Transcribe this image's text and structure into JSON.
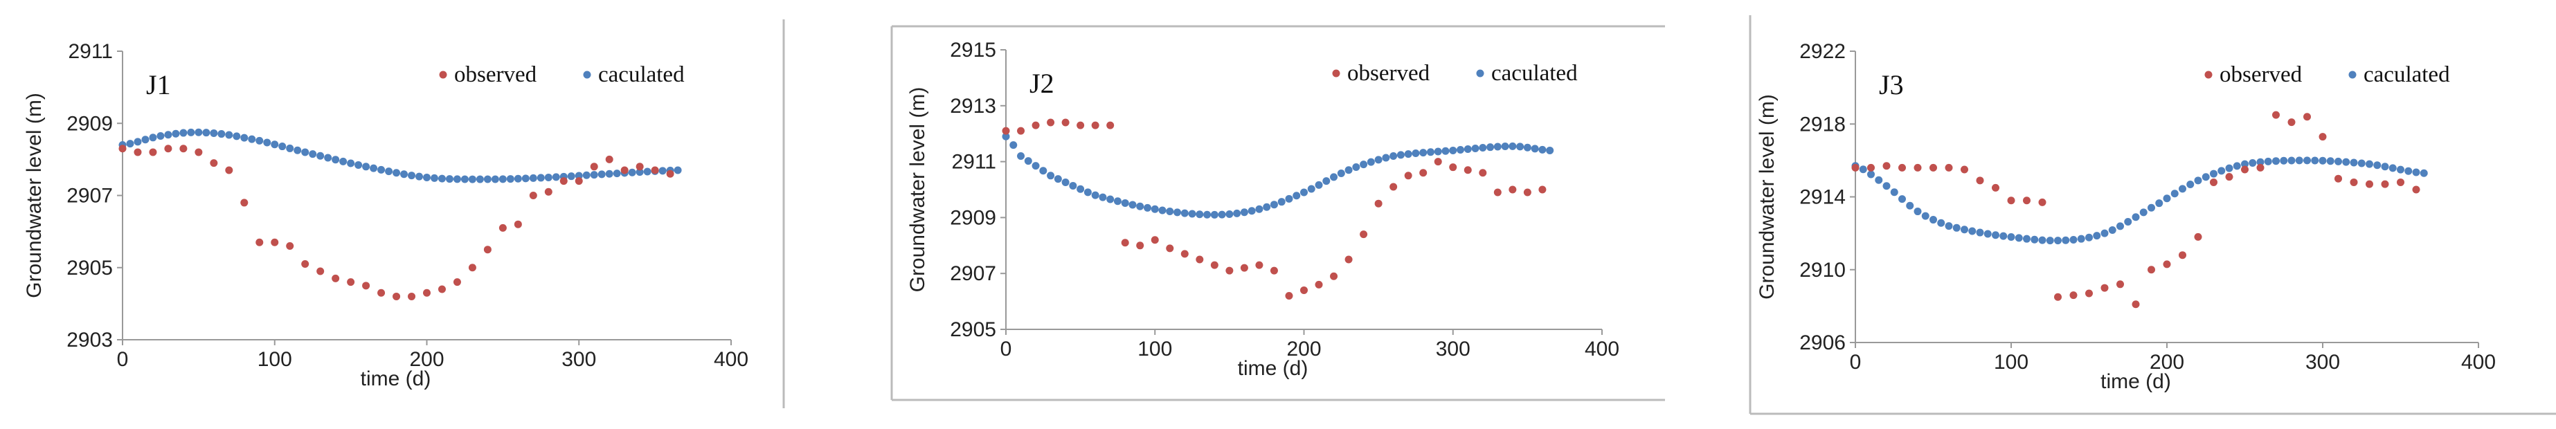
{
  "colors": {
    "observed": "#c0504d",
    "caculated": "#4f81bd",
    "axis": "#999999",
    "border": "#bbbbbb"
  },
  "chart_data": [
    {
      "type": "scatter",
      "title": "J1",
      "xlabel": "time (d)",
      "ylabel": "Groundwater level (m)",
      "xlim": [
        0,
        400
      ],
      "ylim": [
        2903,
        2911
      ],
      "xticks": [
        "0",
        "100",
        "200",
        "300",
        "400"
      ],
      "yticks": [
        "2903",
        "2905",
        "2907",
        "2909",
        "2911"
      ],
      "legend": "top-right",
      "series": [
        {
          "name": "observed",
          "type": "scatter",
          "x": [
            0,
            10,
            20,
            30,
            40,
            50,
            60,
            70,
            80,
            90,
            100,
            110,
            120,
            130,
            140,
            150,
            160,
            170,
            180,
            190,
            200,
            210,
            220,
            230,
            240,
            250,
            260,
            270,
            280,
            290,
            300,
            310,
            320,
            330,
            340,
            350,
            360
          ],
          "y": [
            2908.3,
            2908.2,
            2908.2,
            2908.3,
            2908.3,
            2908.2,
            2907.9,
            2907.7,
            2906.8,
            2905.7,
            2905.7,
            2905.6,
            2905.1,
            2904.9,
            2904.7,
            2904.6,
            2904.5,
            2904.3,
            2904.2,
            2904.2,
            2904.3,
            2904.4,
            2904.6,
            2905.0,
            2905.5,
            2906.1,
            2906.2,
            2907.0,
            2907.1,
            2907.4,
            2907.4,
            2907.8,
            2908.0,
            2907.7,
            2907.8,
            2907.7,
            2907.6
          ]
        },
        {
          "name": "caculated",
          "type": "curve",
          "x_range": [
            0,
            365
          ],
          "anchors": [
            [
              0,
              2908.4
            ],
            [
              25,
              2908.65
            ],
            [
              50,
              2908.75
            ],
            [
              80,
              2908.6
            ],
            [
              120,
              2908.2
            ],
            [
              160,
              2907.8
            ],
            [
              200,
              2907.5
            ],
            [
              240,
              2907.45
            ],
            [
              280,
              2907.5
            ],
            [
              320,
              2907.6
            ],
            [
              365,
              2907.7
            ]
          ]
        }
      ]
    },
    {
      "type": "scatter",
      "title": "J2",
      "xlabel": "time (d)",
      "ylabel": "Groundwater level (m)",
      "xlim": [
        0,
        400
      ],
      "ylim": [
        2905,
        2915
      ],
      "xticks": [
        "0",
        "100",
        "200",
        "300",
        "400"
      ],
      "yticks": [
        "2905",
        "2907",
        "2909",
        "2911",
        "2913",
        "2915"
      ],
      "legend": "top-right",
      "series": [
        {
          "name": "observed",
          "type": "scatter",
          "x": [
            0,
            10,
            20,
            30,
            40,
            50,
            60,
            70,
            80,
            90,
            100,
            110,
            120,
            130,
            140,
            150,
            160,
            170,
            180,
            190,
            200,
            210,
            220,
            230,
            240,
            250,
            260,
            270,
            280,
            290,
            300,
            310,
            320,
            330,
            340,
            350,
            360
          ],
          "y": [
            2912.1,
            2912.1,
            2912.3,
            2912.4,
            2912.4,
            2912.3,
            2912.3,
            2912.3,
            2908.1,
            2908.0,
            2908.2,
            2907.9,
            2907.7,
            2907.5,
            2907.3,
            2907.1,
            2907.2,
            2907.3,
            2907.1,
            2906.2,
            2906.4,
            2906.6,
            2906.9,
            2907.5,
            2908.4,
            2909.5,
            2910.1,
            2910.5,
            2910.6,
            2911.0,
            2910.8,
            2910.7,
            2910.6,
            2909.9,
            2910.0,
            2909.9,
            2910.0
          ]
        },
        {
          "name": "caculated",
          "type": "curve",
          "x_range": [
            0,
            365
          ],
          "anchors": [
            [
              0,
              2911.9
            ],
            [
              10,
              2911.2
            ],
            [
              30,
              2910.5
            ],
            [
              60,
              2909.8
            ],
            [
              100,
              2909.3
            ],
            [
              140,
              2909.1
            ],
            [
              170,
              2909.3
            ],
            [
              200,
              2909.9
            ],
            [
              230,
              2910.7
            ],
            [
              260,
              2911.2
            ],
            [
              300,
              2911.4
            ],
            [
              340,
              2911.55
            ],
            [
              365,
              2911.4
            ]
          ]
        }
      ]
    },
    {
      "type": "scatter",
      "title": "J3",
      "xlabel": "time (d)",
      "ylabel": "Groundwater level (m)",
      "xlim": [
        0,
        400
      ],
      "ylim": [
        2906,
        2922
      ],
      "xticks": [
        "0",
        "100",
        "200",
        "300",
        "400"
      ],
      "yticks": [
        "2906",
        "2910",
        "2914",
        "2918",
        "2922"
      ],
      "legend": "top-right",
      "series": [
        {
          "name": "observed",
          "type": "scatter",
          "x": [
            0,
            10,
            20,
            30,
            40,
            50,
            60,
            70,
            80,
            90,
            100,
            110,
            120,
            130,
            140,
            150,
            160,
            170,
            180,
            190,
            200,
            210,
            220,
            230,
            240,
            250,
            260,
            270,
            280,
            290,
            300,
            310,
            320,
            330,
            340,
            350,
            360
          ],
          "y": [
            2915.6,
            2915.6,
            2915.7,
            2915.6,
            2915.6,
            2915.6,
            2915.6,
            2915.5,
            2914.9,
            2914.5,
            2913.8,
            2913.8,
            2913.7,
            2908.5,
            2908.6,
            2908.7,
            2909.0,
            2909.2,
            2908.1,
            2910.0,
            2910.3,
            2910.8,
            2911.8,
            2914.8,
            2915.1,
            2915.5,
            2915.6,
            2918.5,
            2918.1,
            2918.4,
            2917.3,
            2915.0,
            2914.8,
            2914.7,
            2914.7,
            2914.8,
            2914.4
          ]
        },
        {
          "name": "caculated",
          "type": "curve",
          "x_range": [
            0,
            365
          ],
          "anchors": [
            [
              0,
              2915.7
            ],
            [
              20,
              2914.6
            ],
            [
              40,
              2913.2
            ],
            [
              60,
              2912.4
            ],
            [
              90,
              2911.9
            ],
            [
              130,
              2911.6
            ],
            [
              160,
              2912.0
            ],
            [
              190,
              2913.4
            ],
            [
              220,
              2914.9
            ],
            [
              250,
              2915.8
            ],
            [
              290,
              2916.0
            ],
            [
              330,
              2915.8
            ],
            [
              365,
              2915.3
            ]
          ]
        }
      ]
    }
  ]
}
